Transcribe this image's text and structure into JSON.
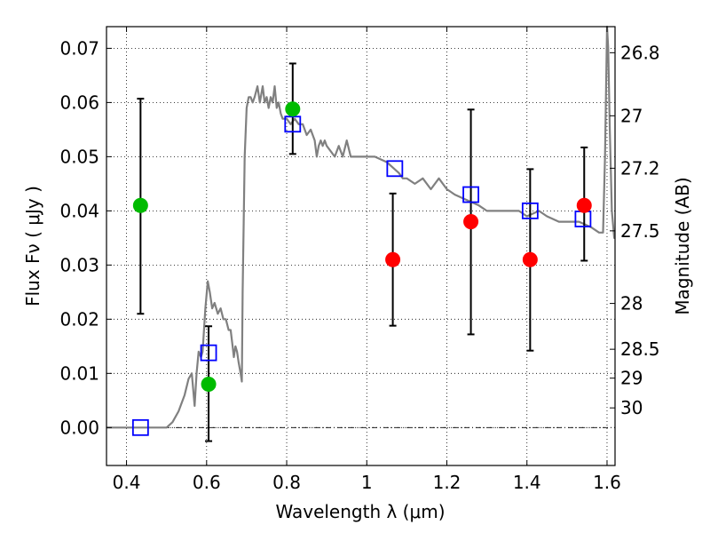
{
  "chart_data": {
    "type": "scatter",
    "xlabel": "Wavelength  λ (μm)",
    "ylabel": "Flux  Fν  ( μJy )",
    "y2label": "Magnitude (AB)",
    "xlim": [
      0.35,
      1.62
    ],
    "ylim": [
      -0.007,
      0.074
    ],
    "grid": true,
    "x_ticks": [
      0.4,
      0.6,
      0.8,
      1.0,
      1.2,
      1.4,
      1.6
    ],
    "x_tick_labels": [
      "0.4",
      "0.6",
      "0.8",
      "1",
      "1.2",
      "1.4",
      "1.6"
    ],
    "y_ticks": [
      0.0,
      0.01,
      0.02,
      0.03,
      0.04,
      0.05,
      0.06,
      0.07
    ],
    "y_tick_labels": [
      "0.00",
      "0.01",
      "0.02",
      "0.03",
      "0.04",
      "0.05",
      "0.06",
      "0.07"
    ],
    "mag_ticks": [
      {
        "label": "26.8",
        "mag": 26.8
      },
      {
        "label": "27",
        "mag": 27.0
      },
      {
        "label": "27.2",
        "mag": 27.2
      },
      {
        "label": "27.5",
        "mag": 27.5
      },
      {
        "label": "28",
        "mag": 28.0
      },
      {
        "label": "28.5",
        "mag": 28.5
      },
      {
        "label": "29",
        "mag": 29.0
      },
      {
        "label": "30",
        "mag": 30.0
      }
    ],
    "model_sed": {
      "color": "#808080",
      "x": [
        0.35,
        0.44,
        0.5,
        0.515,
        0.53,
        0.545,
        0.555,
        0.563,
        0.57,
        0.575,
        0.58,
        0.586,
        0.59,
        0.597,
        0.603,
        0.608,
        0.614,
        0.62,
        0.628,
        0.635,
        0.642,
        0.648,
        0.655,
        0.66,
        0.665,
        0.668,
        0.672,
        0.676,
        0.68,
        0.685,
        0.688,
        0.69,
        0.695,
        0.7,
        0.705,
        0.71,
        0.715,
        0.72,
        0.727,
        0.733,
        0.74,
        0.745,
        0.75,
        0.755,
        0.76,
        0.765,
        0.77,
        0.775,
        0.78,
        0.785,
        0.79,
        0.8,
        0.81,
        0.82,
        0.83,
        0.84,
        0.85,
        0.86,
        0.87,
        0.875,
        0.88,
        0.885,
        0.89,
        0.895,
        0.9,
        0.91,
        0.92,
        0.93,
        0.94,
        0.95,
        0.96,
        0.97,
        0.98,
        0.99,
        1.0,
        1.02,
        1.05,
        1.08,
        1.09,
        1.1,
        1.12,
        1.14,
        1.16,
        1.18,
        1.2,
        1.22,
        1.25,
        1.28,
        1.3,
        1.32,
        1.35,
        1.38,
        1.4,
        1.43,
        1.45,
        1.48,
        1.5,
        1.53,
        1.56,
        1.58,
        1.59,
        1.595,
        1.6,
        1.603,
        1.607,
        1.612,
        1.618,
        1.62
      ],
      "y": [
        0.0,
        0.0,
        0.0,
        0.001,
        0.003,
        0.006,
        0.009,
        0.01,
        0.004,
        0.01,
        0.014,
        0.013,
        0.014,
        0.022,
        0.027,
        0.025,
        0.022,
        0.023,
        0.021,
        0.022,
        0.02,
        0.02,
        0.018,
        0.018,
        0.015,
        0.013,
        0.015,
        0.014,
        0.012,
        0.01,
        0.0085,
        0.025,
        0.05,
        0.059,
        0.061,
        0.061,
        0.06,
        0.061,
        0.063,
        0.06,
        0.063,
        0.06,
        0.061,
        0.059,
        0.061,
        0.06,
        0.063,
        0.059,
        0.06,
        0.058,
        0.057,
        0.057,
        0.056,
        0.057,
        0.056,
        0.056,
        0.054,
        0.055,
        0.053,
        0.05,
        0.052,
        0.053,
        0.052,
        0.053,
        0.052,
        0.051,
        0.05,
        0.052,
        0.05,
        0.053,
        0.05,
        0.05,
        0.05,
        0.05,
        0.05,
        0.05,
        0.049,
        0.047,
        0.046,
        0.046,
        0.045,
        0.046,
        0.044,
        0.046,
        0.044,
        0.043,
        0.042,
        0.041,
        0.04,
        0.04,
        0.04,
        0.04,
        0.039,
        0.04,
        0.039,
        0.038,
        0.038,
        0.038,
        0.037,
        0.036,
        0.036,
        0.05,
        0.074,
        0.07,
        0.055,
        0.04,
        0.035,
        0.035
      ]
    },
    "model_points": {
      "color": "#0000ff",
      "marker": "open-square",
      "x": [
        0.435,
        0.605,
        0.815,
        1.07,
        1.26,
        1.408,
        1.54
      ],
      "y": [
        0.0,
        0.0138,
        0.056,
        0.0478,
        0.043,
        0.04,
        0.0385
      ]
    },
    "detections": {
      "color": "#00bb00",
      "marker": "filled-circle",
      "x": [
        0.435,
        0.605,
        0.815
      ],
      "y": [
        0.041,
        0.008,
        0.0588
      ],
      "err_low": [
        0.021,
        -0.0025,
        0.0505
      ],
      "err_high": [
        0.0607,
        0.0187,
        0.0672
      ]
    },
    "upper_points": {
      "color": "#ff0000",
      "marker": "filled-circle",
      "x": [
        1.065,
        1.26,
        1.408,
        1.543
      ],
      "y": [
        0.031,
        0.038,
        0.031,
        0.041
      ],
      "err_low": [
        0.0188,
        0.0172,
        0.0142,
        0.0308
      ],
      "err_high": [
        0.0432,
        0.0587,
        0.0477,
        0.0517
      ]
    }
  }
}
